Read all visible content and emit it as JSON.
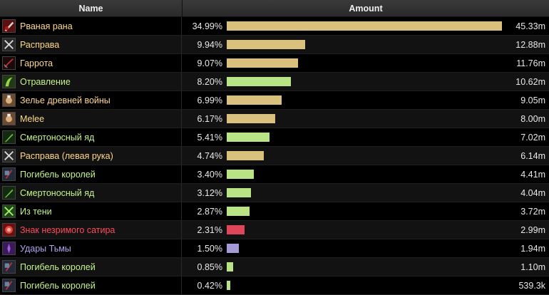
{
  "header": {
    "name": "Name",
    "amount": "Amount"
  },
  "colors": {
    "rogue": "#fff569",
    "physical": "#d9c07c",
    "nature": "#b8e486",
    "fire": "#e0465a",
    "shadow": "#a59ad7",
    "physical_text": "#ffd98b",
    "nature_text": "#c6f48a",
    "fire_text": "#ff4a5a",
    "shadow_text": "#b2a5f0"
  },
  "rows": [
    {
      "name": "Рваная рана",
      "pct": "34.99%",
      "amount": "45.33m",
      "share": 34.99,
      "school": "physical",
      "icon": "rupture-icon"
    },
    {
      "name": "Расправа",
      "pct": "9.94%",
      "amount": "12.88m",
      "share": 9.94,
      "school": "physical",
      "icon": "mutilate-icon"
    },
    {
      "name": "Гаррота",
      "pct": "9.07%",
      "amount": "11.76m",
      "share": 9.07,
      "school": "physical",
      "icon": "garrote-icon"
    },
    {
      "name": "Отравление",
      "pct": "8.20%",
      "amount": "10.62m",
      "share": 8.2,
      "school": "nature",
      "icon": "envenom-icon"
    },
    {
      "name": "Зелье древней войны",
      "pct": "6.99%",
      "amount": "9.05m",
      "share": 6.99,
      "school": "physical",
      "icon": "potion-icon"
    },
    {
      "name": "Melee",
      "pct": "6.17%",
      "amount": "8.00m",
      "share": 6.17,
      "school": "physical",
      "icon": "melee-icon"
    },
    {
      "name": "Смертоносный яд",
      "pct": "5.41%",
      "amount": "7.02m",
      "share": 5.41,
      "school": "nature",
      "icon": "deadly-poison-icon"
    },
    {
      "name": "Расправа (левая рука)",
      "pct": "4.74%",
      "amount": "6.14m",
      "share": 4.74,
      "school": "physical",
      "icon": "mutilate-offhand-icon"
    },
    {
      "name": "Погибель королей",
      "pct": "3.40%",
      "amount": "4.41m",
      "share": 3.4,
      "school": "nature",
      "icon": "kingsbane-icon"
    },
    {
      "name": "Смертоносный яд",
      "pct": "3.12%",
      "amount": "4.04m",
      "share": 3.12,
      "school": "nature",
      "icon": "deadly-poison-icon"
    },
    {
      "name": "Из тени",
      "pct": "2.87%",
      "amount": "3.72m",
      "share": 2.87,
      "school": "nature",
      "icon": "from-the-shadows-icon"
    },
    {
      "name": "Знак незримого сатира",
      "pct": "2.31%",
      "amount": "2.99m",
      "share": 2.31,
      "school": "fire",
      "icon": "satyr-mark-icon"
    },
    {
      "name": "Удары Тьмы",
      "pct": "1.50%",
      "amount": "1.94m",
      "share": 1.5,
      "school": "shadow",
      "icon": "shadow-blades-icon"
    },
    {
      "name": "Погибель королей",
      "pct": "0.85%",
      "amount": "1.10m",
      "share": 0.85,
      "school": "nature",
      "icon": "kingsbane-icon"
    },
    {
      "name": "Погибель королей",
      "pct": "0.42%",
      "amount": "539.3k",
      "share": 0.42,
      "school": "nature",
      "icon": "kingsbane-icon"
    }
  ]
}
